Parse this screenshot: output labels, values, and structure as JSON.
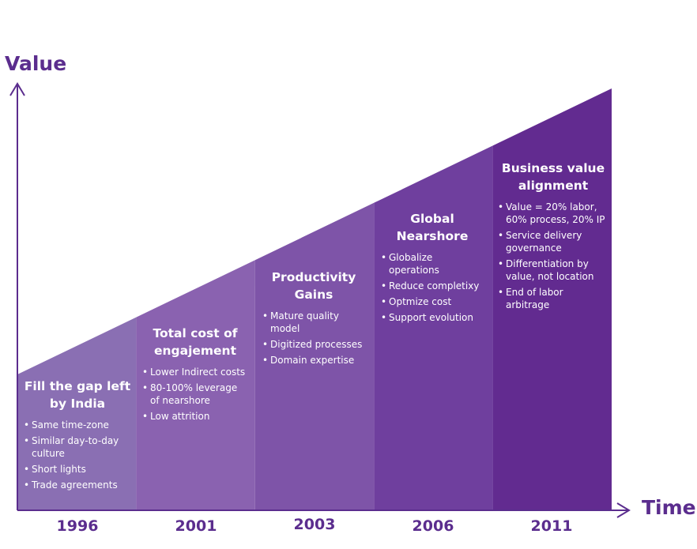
{
  "axes": {
    "y_label": "Value",
    "x_label": "Time"
  },
  "stages": [
    {
      "year": "1996",
      "title": "Fill the gap left by India",
      "items": [
        "Same time-zone",
        "Similar day-to-day culture",
        "Short lights",
        "Trade agreements"
      ],
      "color": "#8a6fb3"
    },
    {
      "year": "2001",
      "title": "Total cost of engajement",
      "items": [
        "Lower Indirect costs",
        "80-100% leverage of nearshore",
        "Low attrition"
      ],
      "color": "#8a62b0"
    },
    {
      "year": "2003",
      "title": "Productivity Gains",
      "items": [
        "Mature quality model",
        "Digitized processes",
        "Domain expertise"
      ],
      "color": "#7e54a8"
    },
    {
      "year": "2006",
      "title": "Global Nearshore",
      "items": [
        "Globalize operations",
        "Reduce completixy",
        "Optmize cost",
        "Support evolution"
      ],
      "color": "#6f3f9e"
    },
    {
      "year": "2011",
      "title": "Business value alignment",
      "items": [
        "Value = 20% labor, 60% process, 20% IP",
        "Service delivery governance",
        "Differentiation by value, not location",
        "End of labor arbitrage"
      ],
      "color": "#622b90"
    }
  ],
  "colors": {
    "axis": "#5b2d8e",
    "text": "#ffffff"
  }
}
